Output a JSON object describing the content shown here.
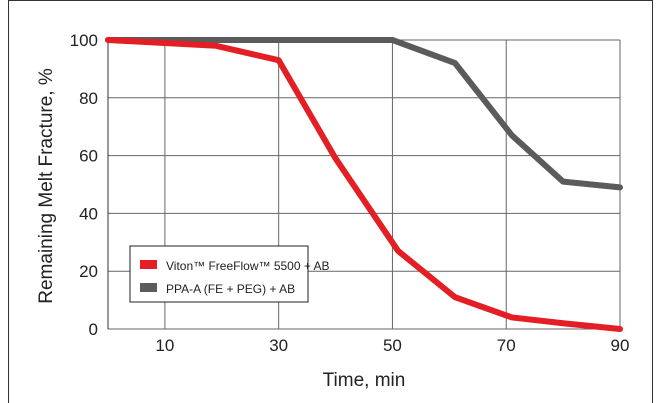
{
  "chart_data": {
    "type": "line",
    "title": "",
    "xlabel": "Time, min",
    "ylabel": "Remaining Melt Fracture, %",
    "xlim": [
      0,
      90
    ],
    "ylim": [
      0,
      100
    ],
    "x_ticks": [
      10,
      30,
      50,
      70,
      90
    ],
    "y_ticks": [
      0,
      20,
      40,
      60,
      80,
      100
    ],
    "grid": true,
    "legend_placement": "bottom-left",
    "series": [
      {
        "name": "Viton™ FreeFlow™ 5500 + AB",
        "color": "#e31e24",
        "x": [
          0,
          19,
          30,
          40,
          51,
          61,
          71,
          80,
          90
        ],
        "y": [
          100,
          98,
          93,
          59,
          27,
          11,
          4,
          2,
          0
        ]
      },
      {
        "name": "PPA-A (FE + PEG) + AB",
        "color": "#5b5b5b",
        "x": [
          0,
          19,
          30,
          40,
          50,
          61,
          71,
          80,
          90
        ],
        "y": [
          100,
          100,
          100,
          100,
          100,
          92,
          67,
          51,
          49
        ]
      }
    ]
  }
}
